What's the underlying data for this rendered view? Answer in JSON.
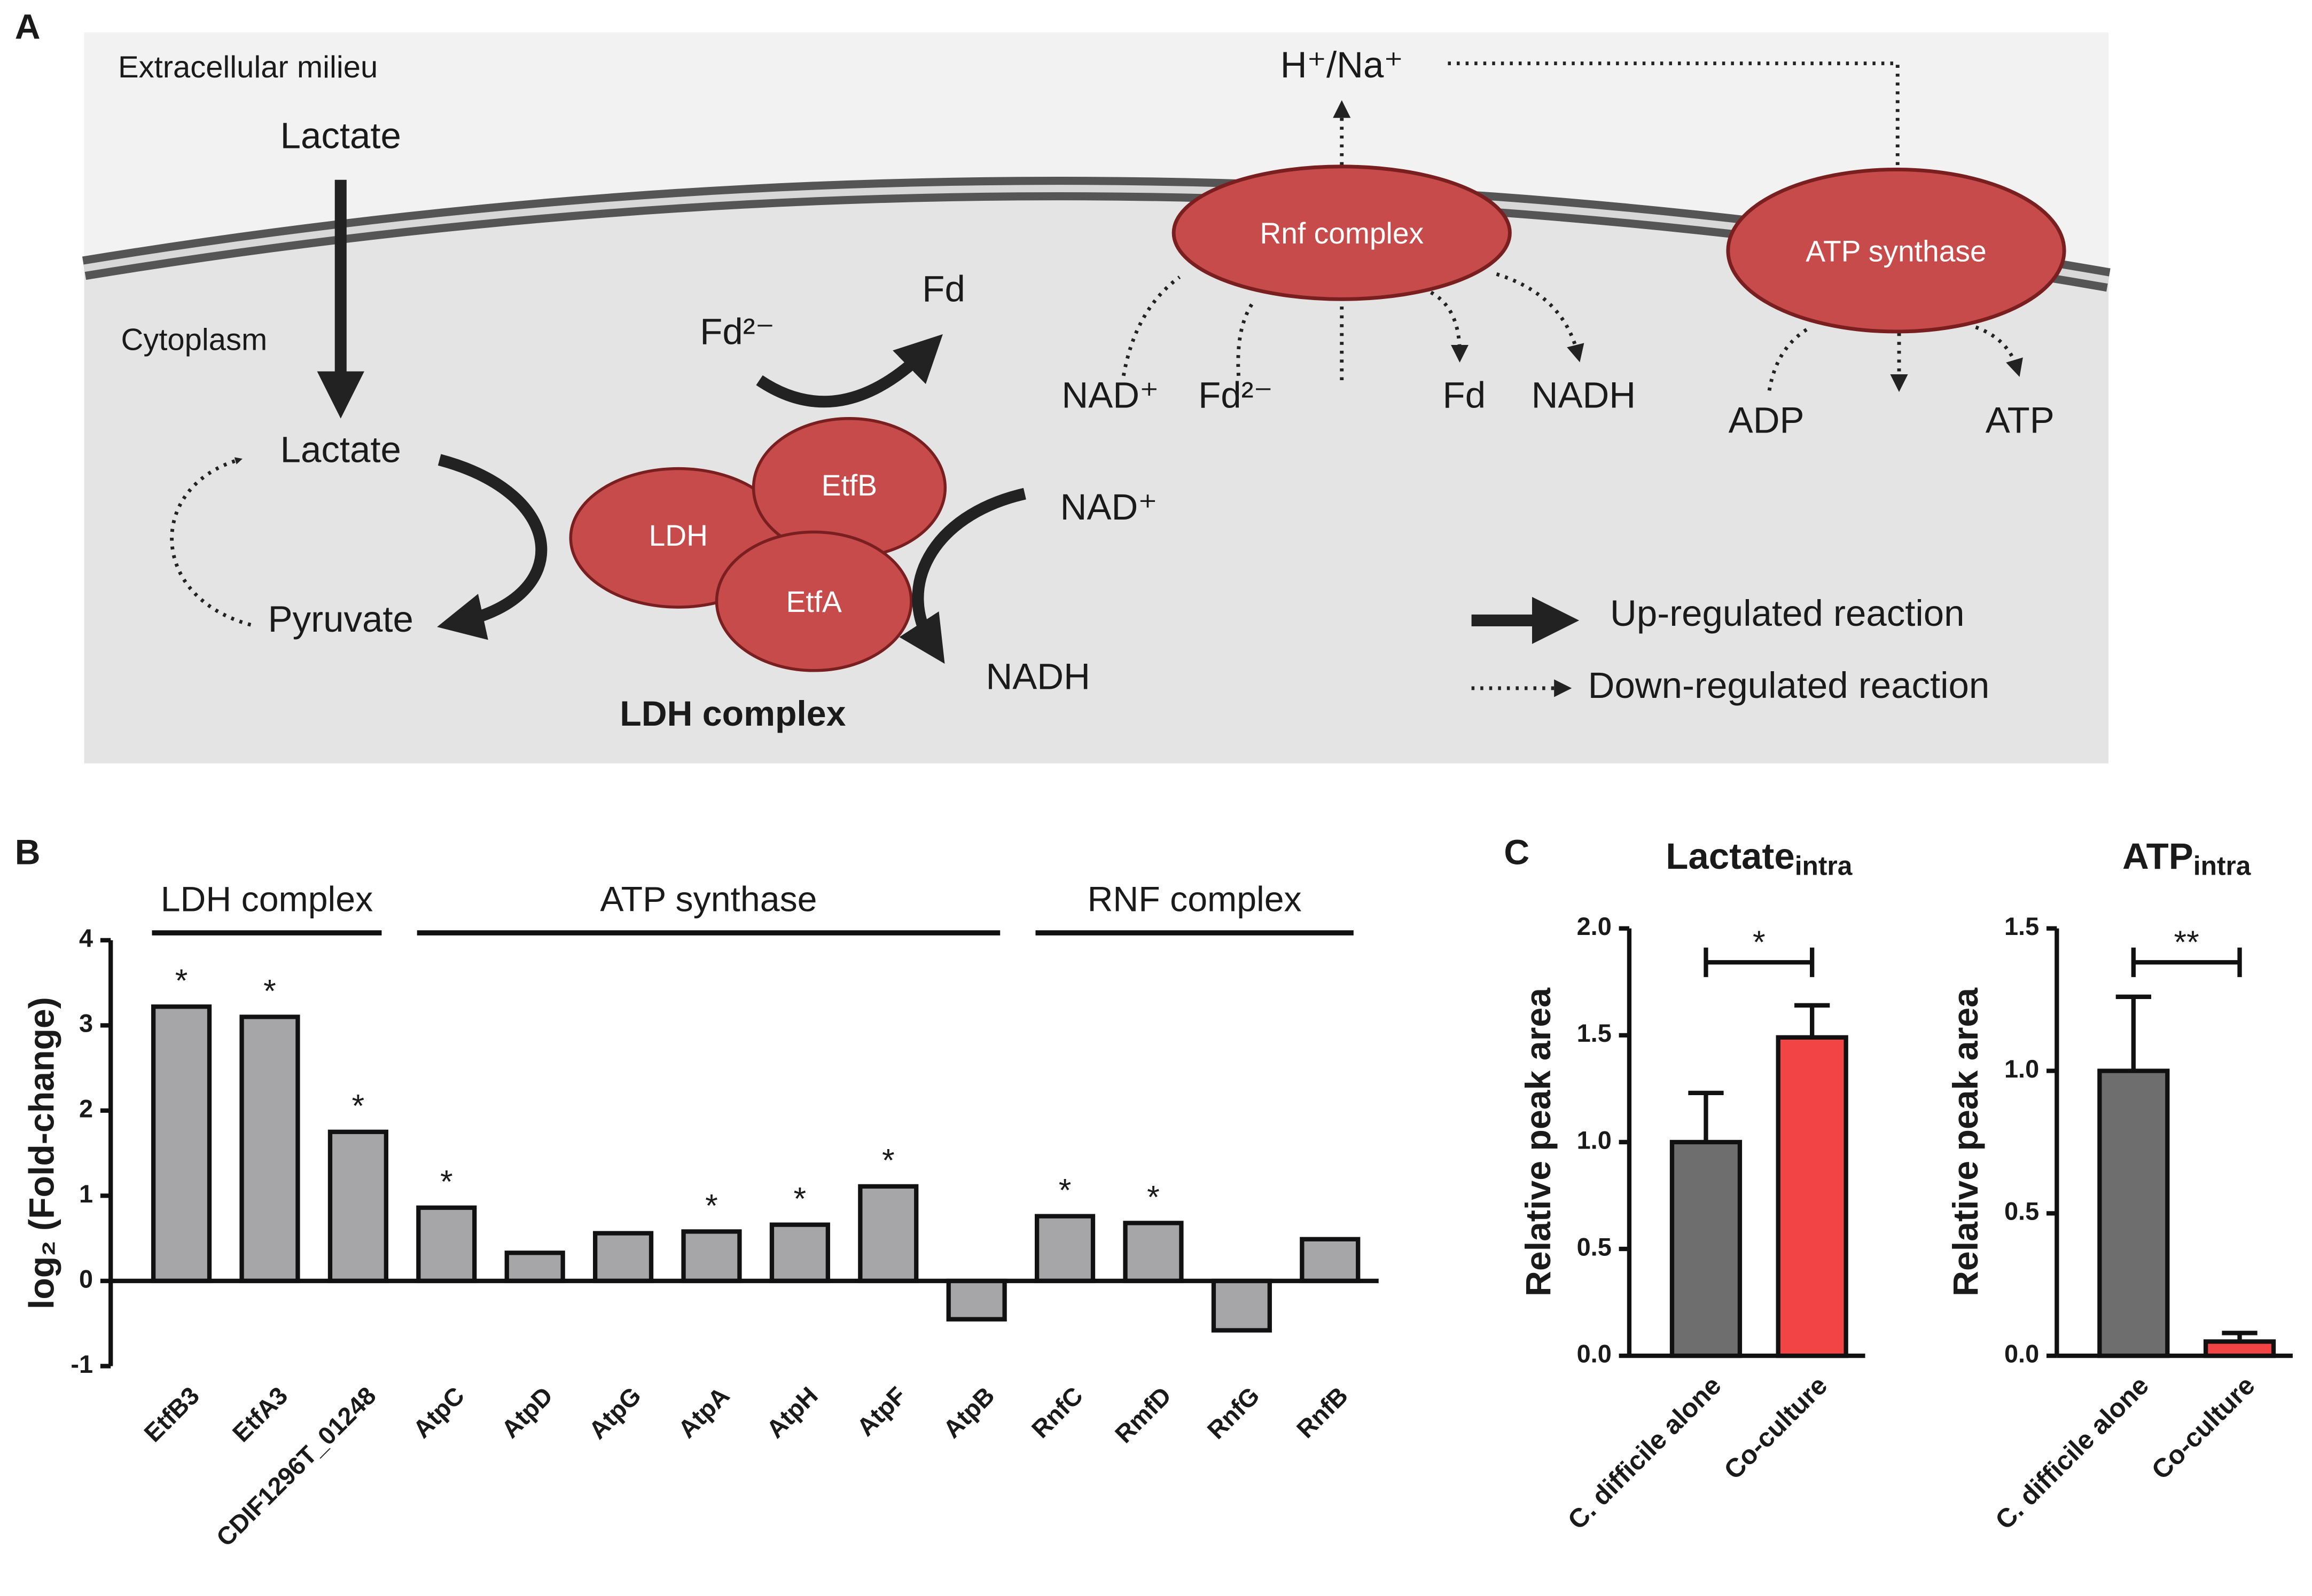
{
  "diagram": {
    "panel": "A",
    "extracellular": "Extracellular milieu",
    "cytoplasm": "Cytoplasm",
    "lactate_out": "Lactate",
    "lactate_in": "Lactate",
    "pyruvate": "Pyruvate",
    "ldh": "LDH",
    "etfb": "EtfB",
    "etfa": "EtfA",
    "ldh_complex": "LDH complex",
    "fd2_ldh": "Fd²⁻",
    "fd_ldh": "Fd",
    "nad_ldh": "NAD⁺",
    "nadh_ldh": "NADH",
    "ion": "H⁺/Na⁺",
    "rnf": "Rnf complex",
    "nad_rnf": "NAD⁺",
    "fd2_rnf": "Fd²⁻",
    "fd_rnf": "Fd",
    "nadh_rnf": "NADH",
    "atp_synthase": "ATP synthase",
    "adp": "ADP",
    "atp": "ATP",
    "legend_up": "Up-regulated reaction",
    "legend_down": "Down-regulated reaction"
  },
  "chart_data": [
    {
      "type": "bar",
      "panel": "B",
      "y_label": "log₂ (Fold-change)",
      "categories": [
        "EtfB3",
        "EtfA3",
        "CDIF1296T_01248",
        "AtpC",
        "AtpD",
        "AtpG",
        "AtpA",
        "AtpH",
        "AtpF",
        "AtpB",
        "RnfC",
        "RmfD",
        "RnfG",
        "RnfB"
      ],
      "values": [
        3.22,
        3.1,
        1.75,
        0.86,
        0.33,
        0.56,
        0.58,
        0.66,
        1.11,
        -0.45,
        0.76,
        0.68,
        -0.58,
        0.49
      ],
      "significance": [
        "*",
        "*",
        "*",
        "*",
        null,
        null,
        "*",
        "*",
        "*",
        null,
        "*",
        "*",
        null,
        null
      ],
      "groups": [
        {
          "label": "LDH complex",
          "first": 0,
          "last": 2
        },
        {
          "label": "ATP synthase",
          "first": 3,
          "last": 9
        },
        {
          "label": "RNF complex",
          "first": 10,
          "last": 13
        }
      ],
      "color": "#a6a6a8",
      "ylim": [
        -1,
        4
      ],
      "yticks": [
        -1,
        0,
        1,
        2,
        3,
        4
      ]
    },
    {
      "type": "errorbar",
      "panel": "C",
      "title": "Lactate",
      "title_subscript": "intra",
      "y_label": "Relative peak area",
      "categories": [
        "C. difficile alone",
        "Co-culture"
      ],
      "values": [
        1.0,
        1.49
      ],
      "errors": [
        0.23,
        0.15
      ],
      "colors": [
        "#6e6e6e",
        "#f24444"
      ],
      "significance": "*",
      "ylim": [
        0,
        2
      ],
      "yticks": [
        {
          "value": 0,
          "label": "0.0"
        },
        {
          "value": 0.5,
          "label": "0.5"
        },
        {
          "value": 1,
          "label": "1.0"
        },
        {
          "value": 1.5,
          "label": "1.5"
        },
        {
          "value": 2,
          "label": "2.0"
        }
      ]
    },
    {
      "type": "errorbar",
      "title": "ATP",
      "title_subscript": "intra",
      "y_label": "Relative peak area",
      "categories": [
        "C. difficile alone",
        "Co-culture"
      ],
      "values": [
        1.0,
        0.05
      ],
      "errors": [
        0.26,
        0.03
      ],
      "colors": [
        "#6e6e6e",
        "#f24444"
      ],
      "significance": "**",
      "ylim": [
        0,
        1.5
      ],
      "yticks": [
        {
          "value": 0,
          "label": "0.0"
        },
        {
          "value": 0.5,
          "label": "0.5"
        },
        {
          "value": 1,
          "label": "1.0"
        },
        {
          "value": 1.5,
          "label": "1.5"
        }
      ]
    }
  ]
}
